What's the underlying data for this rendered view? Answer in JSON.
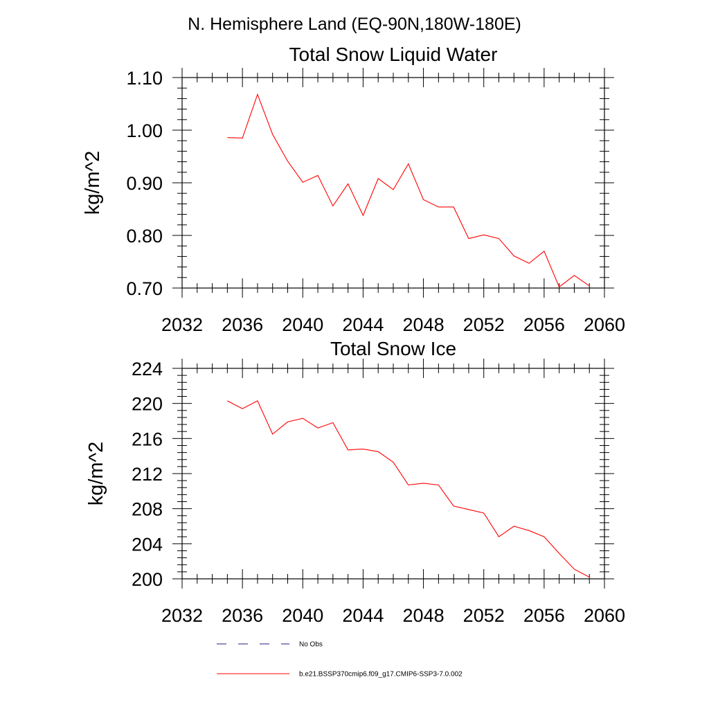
{
  "page_title": "N. Hemisphere Land (EQ-90N,180W-180E)",
  "legend": {
    "items": [
      {
        "label": "No Obs",
        "color": "#1f1f7a",
        "dash": true
      },
      {
        "label": "b.e21.BSSP370cmip6.f09_g17.CMIP6-SSP3-7.0.002",
        "color": "#ff0000",
        "dash": false
      }
    ]
  },
  "chart_data": [
    {
      "type": "line",
      "title": "Total Snow Liquid Water",
      "xlabel": "",
      "ylabel": "kg/m^2",
      "xlim": [
        2032,
        2060
      ],
      "ylim": [
        0.7,
        1.1
      ],
      "x_ticks": [
        2032,
        2036,
        2040,
        2044,
        2048,
        2052,
        2056,
        2060
      ],
      "y_ticks": [
        "0.70",
        "0.80",
        "0.90",
        "1.00",
        "1.10"
      ],
      "y_tick_values": [
        0.7,
        0.8,
        0.9,
        1.0,
        1.1
      ],
      "grid": false,
      "series": [
        {
          "color": "#ff0000",
          "x": [
            2035,
            2036,
            2037,
            2038,
            2039,
            2040,
            2041,
            2042,
            2043,
            2044,
            2045,
            2046,
            2047,
            2048,
            2049,
            2050,
            2051,
            2052,
            2053,
            2054,
            2055,
            2056,
            2057,
            2058,
            2059
          ],
          "y": [
            0.986,
            0.985,
            1.068,
            0.992,
            0.941,
            0.901,
            0.914,
            0.856,
            0.898,
            0.838,
            0.908,
            0.887,
            0.936,
            0.868,
            0.854,
            0.854,
            0.794,
            0.801,
            0.794,
            0.761,
            0.747,
            0.77,
            0.702,
            0.724,
            0.704
          ]
        }
      ]
    },
    {
      "type": "line",
      "title": "Total Snow Ice",
      "xlabel": "",
      "ylabel": "kg/m^2",
      "xlim": [
        2032,
        2060
      ],
      "ylim": [
        200,
        224
      ],
      "x_ticks": [
        2032,
        2036,
        2040,
        2044,
        2048,
        2052,
        2056,
        2060
      ],
      "y_ticks": [
        "200",
        "204",
        "208",
        "212",
        "216",
        "220",
        "224"
      ],
      "y_tick_values": [
        200,
        204,
        208,
        212,
        216,
        220,
        224
      ],
      "grid": false,
      "series": [
        {
          "color": "#ff0000",
          "x": [
            2035,
            2036,
            2037,
            2038,
            2039,
            2040,
            2041,
            2042,
            2043,
            2044,
            2045,
            2046,
            2047,
            2048,
            2049,
            2050,
            2051,
            2052,
            2053,
            2054,
            2055,
            2056,
            2057,
            2058,
            2059
          ],
          "y": [
            220.3,
            219.4,
            220.3,
            216.5,
            217.9,
            218.3,
            217.2,
            217.8,
            214.7,
            214.8,
            214.5,
            213.3,
            210.7,
            210.9,
            210.7,
            208.3,
            207.9,
            207.5,
            204.8,
            206.0,
            205.5,
            204.8,
            202.9,
            201.1,
            200.2
          ]
        }
      ]
    }
  ]
}
